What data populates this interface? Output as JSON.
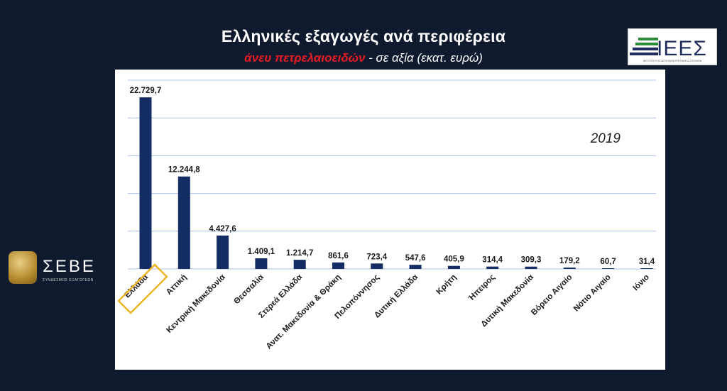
{
  "header": {
    "title": "Ελληνικές εξαγωγές ανά περιφέρεια",
    "subtitle_accent": "άνευ πετρελαιοειδών",
    "subtitle_rest": " - σε αξία (εκατ. ευρώ)"
  },
  "logos": {
    "ieep_text": "ΙΕΕΣ",
    "ieep_tagline": "ΙΝΣΤΙΤΟΥΤΟ ΕΞΑΓΩΓΙΚΩΝ ΕΡΕΥΝΩΝ & ΣΠΟΥΔΩΝ",
    "sebe_text": "ΣΕΒΕ",
    "sebe_tagline": "ΣΥΝΔΕΣΜΟΣ ΕΞΑΓΩΓΕΩΝ"
  },
  "colors": {
    "bar": "#132c63",
    "grid": "#a9c5e8",
    "highlight": "#f0b429",
    "ieep_green": "#2e8b3a",
    "ieep_navy": "#1f2d5c"
  },
  "chart_data": {
    "type": "bar",
    "annotation": "2019",
    "categories": [
      "Ελλάδα",
      "Αττική",
      "Κεντρική Μακεδονία",
      "Θεσσαλία",
      "Στερεά Ελλάδα",
      "Ανατ. Μακεδονία & Θράκη",
      "Πελοπόννησος",
      "Δυτική Ελλάδα",
      "Κρήτη",
      "Ήπειρος",
      "Δυτική Μακεδονία",
      "Βόρειο Αιγαίο",
      "Νότιο Αιγαίο",
      "Ιόνιο"
    ],
    "values": [
      22729.7,
      12244.8,
      4427.6,
      1409.1,
      1214.7,
      861.6,
      723.4,
      547.6,
      405.9,
      314.4,
      309.3,
      179.2,
      60.7,
      31.4
    ],
    "value_labels": [
      "22.729,7",
      "12.244,8",
      "4.427,6",
      "1.409,1",
      "1.214,7",
      "861,6",
      "723,4",
      "547,6",
      "405,9",
      "314,4",
      "309,3",
      "179,2",
      "60,7",
      "31,4"
    ],
    "highlighted_category": "Ελλάδα",
    "ylim": [
      0,
      25000
    ],
    "grid": true,
    "ytick_labels_shown": false
  }
}
